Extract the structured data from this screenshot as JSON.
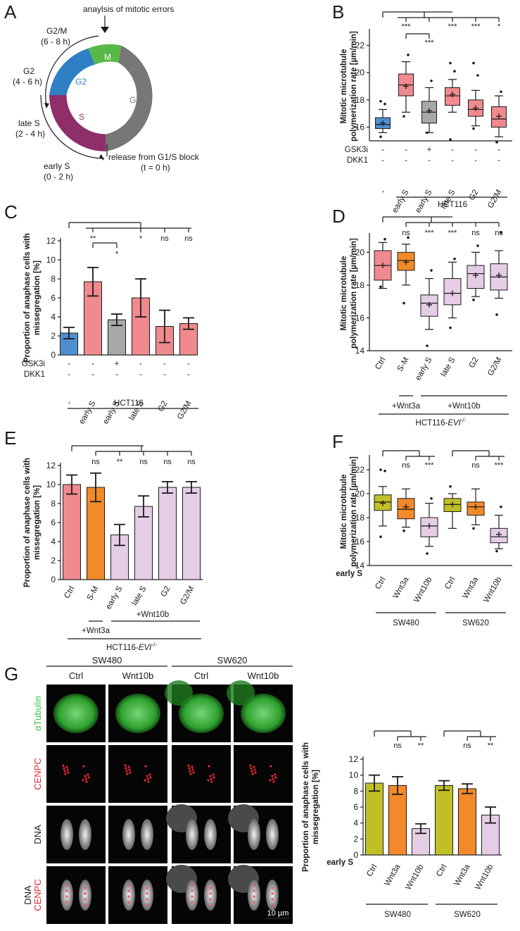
{
  "figure": {
    "panel_labels": [
      "A",
      "B",
      "C",
      "D",
      "E",
      "F",
      "G"
    ]
  },
  "panel_a": {
    "title": "anaylsis of mitotic errors",
    "phases": [
      {
        "name": "M",
        "color": "#57b947"
      },
      {
        "name": "G1",
        "color": "#777777"
      },
      {
        "name": "S",
        "color": "#8e2f69"
      },
      {
        "name": "G2",
        "color": "#2f7fc4"
      }
    ],
    "labels": [
      {
        "name": "G2/M",
        "time": "(6 - 8 h)"
      },
      {
        "name": "G2",
        "time": "(4 - 6 h)"
      },
      {
        "name": "late S",
        "time": "(2 - 4 h)"
      },
      {
        "name": "early S",
        "time": "(0 - 2 h)"
      }
    ],
    "release_label": "release from G1/S block",
    "release_time": "(t = 0 h)"
  },
  "chart_data": [
    {
      "id": "B",
      "type": "box",
      "ylabel_lines": [
        "Mitotic microtubule",
        "polymerization rate [µm/min]"
      ],
      "ylim": [
        15,
        23
      ],
      "yticks": [
        16,
        18,
        20,
        22
      ],
      "categories": [
        "-",
        "early S",
        "early S",
        "late S",
        "G2",
        "G2/M"
      ],
      "colors": [
        "#4f8fd0",
        "#f08a8f",
        "#a8a8a8",
        "#f08a8f",
        "#f08a8f",
        "#f08a8f"
      ],
      "boxes": [
        {
          "q1": 15.9,
          "med": 16.2,
          "q3": 16.7,
          "lo": 15.6,
          "hi": 17.3,
          "mean": 16.3,
          "out": [
            15.3,
            17.7,
            17.9
          ]
        },
        {
          "q1": 18.3,
          "med": 19.1,
          "q3": 19.9,
          "lo": 17.1,
          "hi": 20.8,
          "mean": 19.0,
          "out": [
            16.8,
            21.3
          ]
        },
        {
          "q1": 16.3,
          "med": 17.1,
          "q3": 17.9,
          "lo": 15.6,
          "hi": 18.9,
          "mean": 17.2,
          "out": [
            15.6,
            19.4
          ]
        },
        {
          "q1": 17.6,
          "med": 18.3,
          "q3": 18.9,
          "lo": 17.1,
          "hi": 19.5,
          "mean": 18.4,
          "out": [
            15.1,
            20.1,
            20.7
          ]
        },
        {
          "q1": 16.8,
          "med": 17.3,
          "q3": 18.0,
          "lo": 16.1,
          "hi": 18.7,
          "mean": 17.4,
          "out": [
            15.9,
            19.8,
            20.7
          ]
        },
        {
          "q1": 16.0,
          "med": 16.6,
          "q3": 17.5,
          "lo": 15.3,
          "hi": 18.3,
          "mean": 16.8,
          "out": [
            14.9,
            18.6
          ]
        }
      ],
      "sig": [
        "***",
        "***",
        "***",
        "***",
        "*"
      ],
      "sig_inner": "***",
      "rows": [
        {
          "label": "GSK3i",
          "values": [
            "-",
            "-",
            "+",
            "-",
            "-",
            "-"
          ]
        },
        {
          "label": "DKK1",
          "values": [
            "-",
            "-",
            "-",
            "-",
            "-",
            "-"
          ]
        }
      ],
      "group_label": "HCT116"
    },
    {
      "id": "C",
      "type": "bar",
      "ylabel_lines": [
        "Proportion of anaphase cells with",
        "missegregation [%]"
      ],
      "ylim": [
        0,
        12
      ],
      "yticks": [
        0,
        2,
        4,
        6,
        8,
        10,
        12
      ],
      "categories": [
        "-",
        "early S",
        "early S",
        "late S",
        "G2",
        "G2/M"
      ],
      "colors": [
        "#4f8fd0",
        "#f08a8f",
        "#a8a8a8",
        "#f08a8f",
        "#f08a8f",
        "#f08a8f"
      ],
      "values": [
        2.3,
        7.7,
        3.7,
        6.0,
        3.0,
        3.3
      ],
      "errors": [
        0.6,
        1.5,
        0.6,
        2.0,
        1.7,
        0.6
      ],
      "sig": [
        "**",
        "*",
        "ns",
        "ns"
      ],
      "sig_inner": "*",
      "rows": [
        {
          "label": "GSK3i",
          "values": [
            "-",
            "-",
            "+",
            "-",
            "-",
            "-"
          ]
        },
        {
          "label": "DKK1",
          "values": [
            "-",
            "-",
            "-",
            "-",
            "-",
            "-"
          ]
        }
      ],
      "group_label": "HCT116"
    },
    {
      "id": "D",
      "type": "box",
      "ylabel_lines": [
        "Mitotic microtubule",
        "polymerization rate [µm/min]"
      ],
      "ylim": [
        14,
        21
      ],
      "yticks": [
        14,
        16,
        18,
        20
      ],
      "categories": [
        "Ctrl",
        "S-M",
        "early S",
        "late S",
        "G2",
        "G2/M"
      ],
      "colors": [
        "#f08a8f",
        "#f28a2a",
        "#e6cde6",
        "#e6cde6",
        "#e6cde6",
        "#e6cde6"
      ],
      "boxes": [
        {
          "q1": 18.3,
          "med": 19.2,
          "q3": 20.1,
          "lo": 17.8,
          "hi": 20.6,
          "mean": 19.2,
          "out": [
            17.9,
            20.8
          ]
        },
        {
          "q1": 18.9,
          "med": 19.5,
          "q3": 20.0,
          "lo": 18.0,
          "hi": 20.5,
          "mean": 19.4,
          "out": [
            16.9,
            20.9
          ]
        },
        {
          "q1": 16.1,
          "med": 16.9,
          "q3": 17.4,
          "lo": 15.3,
          "hi": 18.4,
          "mean": 16.8,
          "out": [
            14.3,
            18.9
          ]
        },
        {
          "q1": 16.8,
          "med": 17.5,
          "q3": 18.4,
          "lo": 16.0,
          "hi": 19.4,
          "mean": 17.5,
          "out": [
            15.4,
            19.6
          ]
        },
        {
          "q1": 17.8,
          "med": 18.7,
          "q3": 19.2,
          "lo": 17.3,
          "hi": 20.0,
          "mean": 18.6,
          "out": [
            17.1,
            20.4
          ]
        },
        {
          "q1": 17.7,
          "med": 18.5,
          "q3": 19.3,
          "lo": 17.2,
          "hi": 20.1,
          "mean": 18.6,
          "out": [
            16.2,
            21.2
          ]
        }
      ],
      "sig": [
        "ns",
        "***",
        "***",
        "ns",
        "ns"
      ],
      "sublabels": [
        "+Wnt3a",
        "+Wnt10b"
      ],
      "group_label": "HCT116-EVI",
      "group_sup": "-/-"
    },
    {
      "id": "E",
      "type": "bar",
      "ylabel_lines": [
        "Proportion of anaphase cells with",
        "missegregation [%]"
      ],
      "ylim": [
        0,
        12
      ],
      "yticks": [
        0,
        2,
        4,
        6,
        8,
        10,
        12
      ],
      "categories": [
        "Ctrl",
        "S-M",
        "early S",
        "late S",
        "G2",
        "G2/M"
      ],
      "colors": [
        "#f08a8f",
        "#f28a2a",
        "#e6cde6",
        "#e6cde6",
        "#e6cde6",
        "#e6cde6"
      ],
      "values": [
        10.0,
        9.7,
        4.7,
        7.7,
        9.7,
        9.7
      ],
      "errors": [
        1.0,
        1.5,
        1.1,
        1.1,
        0.6,
        0.6
      ],
      "sig": [
        "ns",
        "**",
        "ns",
        "ns",
        "ns"
      ],
      "sublabels": [
        "+Wnt3a",
        "+Wnt10b"
      ],
      "group_label": "HCT116-EVI",
      "group_sup": "-/-"
    },
    {
      "id": "F",
      "type": "box",
      "ylabel_lines": [
        "Mitotic microtubule",
        "polymerization rate [µm/min]"
      ],
      "ylim": [
        14,
        23
      ],
      "yticks": [
        14,
        16,
        18,
        20,
        22
      ],
      "row_label": "early S",
      "categories": [
        "Ctrl",
        "Wnt3a",
        "Wnt10b",
        "Ctrl",
        "Wnt3a",
        "Wnt10b"
      ],
      "colors": [
        "#c0c026",
        "#f28a2a",
        "#e6cde6",
        "#c0c026",
        "#f28a2a",
        "#e6cde6"
      ],
      "boxes": [
        {
          "q1": 18.6,
          "med": 19.3,
          "q3": 19.9,
          "lo": 17.3,
          "hi": 20.6,
          "mean": 19.2,
          "out": [
            16.4,
            21.9,
            22.0
          ]
        },
        {
          "q1": 17.9,
          "med": 18.7,
          "q3": 19.6,
          "lo": 17.2,
          "hi": 20.4,
          "mean": 18.9,
          "out": [
            16.9
          ]
        },
        {
          "q1": 16.4,
          "med": 17.3,
          "q3": 18.0,
          "lo": 15.6,
          "hi": 19.2,
          "mean": 17.3,
          "out": [
            15.0,
            19.6
          ]
        },
        {
          "q1": 18.5,
          "med": 19.1,
          "q3": 19.6,
          "lo": 17.1,
          "hi": 20.0,
          "mean": 19.1,
          "out": [
            20.6
          ]
        },
        {
          "q1": 18.2,
          "med": 18.9,
          "q3": 19.3,
          "lo": 17.4,
          "hi": 20.4,
          "mean": 18.9,
          "out": [
            17.1
          ]
        },
        {
          "q1": 15.9,
          "med": 16.4,
          "q3": 17.1,
          "lo": 15.4,
          "hi": 18.2,
          "mean": 16.6,
          "out": [
            15.2,
            18.9
          ]
        }
      ],
      "sig": [
        "ns",
        "***",
        "ns",
        "***"
      ],
      "groups": [
        "SW480",
        "SW620"
      ]
    },
    {
      "id": "G",
      "type": "bar",
      "ylabel_lines": [
        "Proportion of anaphase cells with",
        "missegregation [%]"
      ],
      "ylim": [
        0,
        12
      ],
      "yticks": [
        0,
        2,
        4,
        6,
        8,
        10,
        12
      ],
      "row_label": "early S",
      "categories": [
        "Ctrl",
        "Wnt3a",
        "Wnt10b",
        "Ctrl",
        "Wnt3a",
        "Wnt10b"
      ],
      "colors": [
        "#c0c026",
        "#f28a2a",
        "#e6cde6",
        "#c0c026",
        "#f28a2a",
        "#e6cde6"
      ],
      "values": [
        9.0,
        8.7,
        3.3,
        8.7,
        8.3,
        5.0
      ],
      "errors": [
        1.0,
        1.1,
        0.6,
        0.6,
        0.6,
        1.0
      ],
      "sig": [
        "ns",
        "**",
        "ns",
        "**"
      ],
      "groups": [
        "SW480",
        "SW620"
      ]
    }
  ],
  "panel_g_images": {
    "groups": [
      "SW480",
      "SW620"
    ],
    "columns": [
      "Ctrl",
      "Wnt10b",
      "Ctrl",
      "Wnt10b"
    ],
    "rows": [
      "αTubulin",
      "CENPC",
      "DNA"
    ],
    "merge_labels": [
      "DNA",
      "CENPC"
    ],
    "row_colors": [
      "#3fc43f",
      "#e0292e",
      "#d9d9d9"
    ],
    "scale_bar": "10 µm"
  }
}
